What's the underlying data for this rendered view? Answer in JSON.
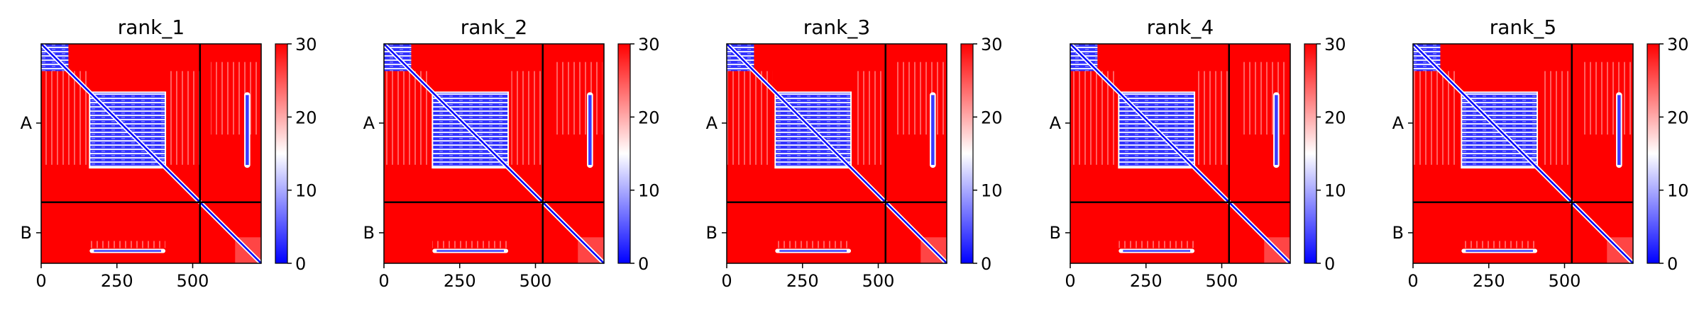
{
  "chart_data": [
    {
      "type": "heatmap",
      "title": "rank_1",
      "x_ticks": [
        0,
        250,
        500
      ],
      "y_tick_labels": [
        "A",
        "B"
      ],
      "chain_boundary": 524,
      "length": 726,
      "colorbar": {
        "min": 0,
        "max": 30,
        "ticks": [
          0,
          10,
          20,
          30
        ],
        "colormap": "bwr"
      },
      "features": {
        "diagonal": "low error (blue)",
        "chain_A_start_block": [
          0,
          90
        ],
        "chain_A_domain_block": [
          160,
          410
        ],
        "chain_A_right_stripe": [
          670,
          690
        ],
        "chain_B_interface_band": {
          "residues_x": [
            160,
            410
          ],
          "row": 685
        }
      }
    },
    {
      "type": "heatmap",
      "title": "rank_2",
      "x_ticks": [
        0,
        250,
        500
      ],
      "y_tick_labels": [
        "A",
        "B"
      ],
      "chain_boundary": 524,
      "length": 726,
      "colorbar": {
        "min": 0,
        "max": 30,
        "ticks": [
          0,
          10,
          20,
          30
        ],
        "colormap": "bwr"
      },
      "features": {
        "diagonal": "low error (blue)",
        "chain_A_start_block": [
          0,
          90
        ],
        "chain_A_domain_block": [
          160,
          410
        ],
        "chain_A_right_stripe": [
          670,
          690
        ],
        "chain_B_interface_band": {
          "residues_x": [
            160,
            410
          ],
          "row": 685
        }
      }
    },
    {
      "type": "heatmap",
      "title": "rank_3",
      "x_ticks": [
        0,
        250,
        500
      ],
      "y_tick_labels": [
        "A",
        "B"
      ],
      "chain_boundary": 524,
      "length": 726,
      "colorbar": {
        "min": 0,
        "max": 30,
        "ticks": [
          0,
          10,
          20,
          30
        ],
        "colormap": "bwr"
      },
      "features": {
        "diagonal": "low error (blue)",
        "chain_A_start_block": [
          0,
          90
        ],
        "chain_A_domain_block": [
          160,
          410
        ],
        "chain_A_right_stripe": [
          670,
          690
        ],
        "chain_B_interface_band": {
          "residues_x": [
            160,
            410
          ],
          "row": 685
        }
      }
    },
    {
      "type": "heatmap",
      "title": "rank_4",
      "x_ticks": [
        0,
        250,
        500
      ],
      "y_tick_labels": [
        "A",
        "B"
      ],
      "chain_boundary": 524,
      "length": 726,
      "colorbar": {
        "min": 0,
        "max": 30,
        "ticks": [
          0,
          10,
          20,
          30
        ],
        "colormap": "bwr"
      },
      "features": {
        "diagonal": "low error (blue)",
        "chain_A_start_block": [
          0,
          90
        ],
        "chain_A_domain_block": [
          160,
          410
        ],
        "chain_A_right_stripe": [
          670,
          690
        ],
        "chain_B_interface_band": {
          "residues_x": [
            160,
            410
          ],
          "row": 685
        }
      }
    },
    {
      "type": "heatmap",
      "title": "rank_5",
      "x_ticks": [
        0,
        250,
        500
      ],
      "y_tick_labels": [
        "A",
        "B"
      ],
      "chain_boundary": 524,
      "length": 726,
      "colorbar": {
        "min": 0,
        "max": 30,
        "ticks": [
          0,
          10,
          20,
          30
        ],
        "colormap": "bwr"
      },
      "features": {
        "diagonal": "low error (blue)",
        "chain_A_start_block": [
          0,
          90
        ],
        "chain_A_domain_block": [
          160,
          410
        ],
        "chain_A_right_stripe": [
          670,
          690
        ],
        "chain_B_interface_band": {
          "residues_x": [
            160,
            410
          ],
          "row": 685
        }
      }
    }
  ]
}
